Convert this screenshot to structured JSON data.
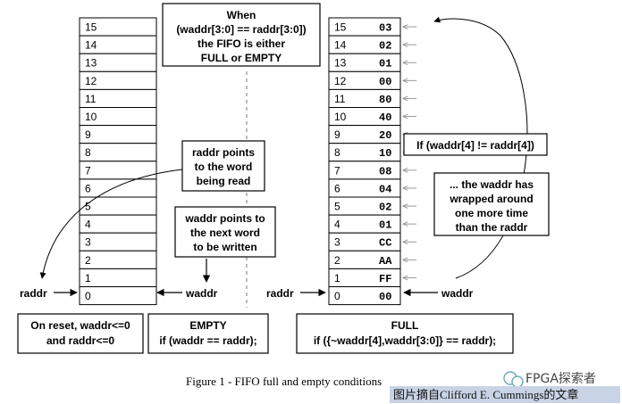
{
  "left_memory": {
    "rows": [
      "15",
      "14",
      "13",
      "12",
      "11",
      "10",
      "9",
      "8",
      "7",
      "6",
      "5",
      "4",
      "3",
      "2",
      "1",
      "0"
    ]
  },
  "right_memory": {
    "rows": [
      {
        "index": "15",
        "value": "03"
      },
      {
        "index": "14",
        "value": "02"
      },
      {
        "index": "13",
        "value": "01"
      },
      {
        "index": "12",
        "value": "00"
      },
      {
        "index": "11",
        "value": "80"
      },
      {
        "index": "10",
        "value": "40"
      },
      {
        "index": "9",
        "value": "20"
      },
      {
        "index": "8",
        "value": "10"
      },
      {
        "index": "7",
        "value": "08"
      },
      {
        "index": "6",
        "value": "04"
      },
      {
        "index": "5",
        "value": "02"
      },
      {
        "index": "4",
        "value": "01"
      },
      {
        "index": "3",
        "value": "CC"
      },
      {
        "index": "2",
        "value": "AA"
      },
      {
        "index": "1",
        "value": "FF"
      },
      {
        "index": "0",
        "value": "00"
      }
    ]
  },
  "notes": {
    "when": [
      "When",
      "(waddr[3:0] == raddr[3:0])",
      "the FIFO is either",
      "FULL or EMPTY"
    ],
    "raddr_points": [
      "raddr points",
      "to the word",
      "being read"
    ],
    "waddr_points": [
      "waddr points to",
      "the next word",
      "to be written"
    ],
    "if_wrap": "If (waddr[4] != raddr[4])",
    "wrapped": [
      "... the waddr has",
      "wrapped around",
      "one more time",
      "than the raddr"
    ]
  },
  "pointers": {
    "left_raddr": "raddr",
    "left_waddr": "waddr",
    "right_raddr": "raddr",
    "right_waddr": "waddr"
  },
  "bottom": {
    "reset": [
      "On reset, waddr<=0",
      "and raddr<=0"
    ],
    "empty": [
      "EMPTY",
      "if (waddr == raddr);"
    ],
    "full": [
      "FULL",
      "if ({~waddr[4],waddr[3:0]} == raddr);"
    ]
  },
  "caption": "Figure 1 - FIFO full and empty conditions",
  "watermark": {
    "brand": "FPGA探索者",
    "credit": "图片摘自Clifford E. Cummings的文章"
  },
  "colors": {
    "arrow_gray": "#9a9a9a",
    "watermark_bg": "#c9d3e6",
    "icon_teal": "#6aa8b8"
  }
}
